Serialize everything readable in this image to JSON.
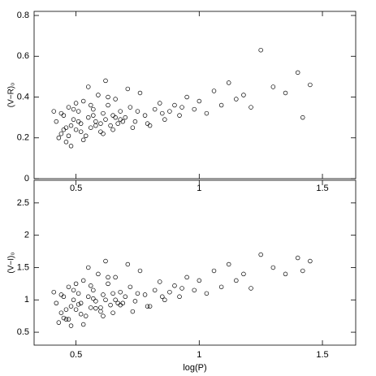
{
  "chart_data": [
    {
      "type": "scatter",
      "ylabel": "(V−R)₀",
      "color": "#000000",
      "xlim": [
        0.33,
        1.635
      ],
      "xticks": [
        0.5,
        1,
        1.5
      ],
      "ylim": [
        0,
        0.82
      ],
      "yticks": [
        0,
        0.2,
        0.4,
        0.6,
        0.8
      ],
      "x": [
        0.42,
        0.44,
        0.45,
        0.46,
        0.47,
        0.48,
        0.49,
        0.5,
        0.51,
        0.52,
        0.53,
        0.54,
        0.55,
        0.56,
        0.57,
        0.58,
        0.59,
        0.6,
        0.61,
        0.62,
        0.63,
        0.64,
        0.65,
        0.66,
        0.67,
        0.68,
        0.7,
        0.72,
        0.74,
        0.76,
        0.78,
        0.8,
        0.82,
        0.84,
        0.86,
        0.88,
        0.9,
        0.92,
        0.95,
        0.98,
        1.0,
        1.03,
        1.06,
        1.09,
        1.12,
        1.15,
        1.18,
        1.21,
        1.25,
        1.3,
        1.35,
        1.4,
        1.42,
        1.45,
        0.43,
        0.46,
        0.48,
        0.5,
        0.52,
        0.55,
        0.57,
        0.6,
        0.62,
        0.65,
        0.68,
        0.71,
        0.75,
        0.79,
        0.85,
        0.93,
        0.41,
        0.45,
        0.49,
        0.53,
        0.58,
        0.63,
        0.69,
        0.44,
        0.47,
        0.51,
        0.56,
        0.61,
        0.66,
        0.73
      ],
      "values": [
        0.28,
        0.22,
        0.31,
        0.18,
        0.35,
        0.26,
        0.29,
        0.24,
        0.33,
        0.27,
        0.38,
        0.21,
        0.3,
        0.25,
        0.34,
        0.28,
        0.41,
        0.23,
        0.32,
        0.29,
        0.36,
        0.26,
        0.31,
        0.39,
        0.27,
        0.33,
        0.3,
        0.35,
        0.28,
        0.42,
        0.31,
        0.26,
        0.34,
        0.37,
        0.29,
        0.33,
        0.36,
        0.31,
        0.4,
        0.34,
        0.38,
        0.32,
        0.43,
        0.36,
        0.47,
        0.39,
        0.41,
        0.35,
        0.63,
        0.45,
        0.42,
        0.52,
        0.3,
        0.46,
        0.2,
        0.25,
        0.16,
        0.37,
        0.23,
        0.45,
        0.31,
        0.27,
        0.48,
        0.24,
        0.29,
        0.44,
        0.33,
        0.27,
        0.32,
        0.35,
        0.33,
        0.24,
        0.34,
        0.19,
        0.26,
        0.4,
        0.28,
        0.32,
        0.21,
        0.28,
        0.36,
        0.22,
        0.3,
        0.25
      ]
    },
    {
      "type": "scatter",
      "ylabel": "(V−I)₀",
      "xlabel": "log(P)",
      "color": "#000000",
      "xlim": [
        0.33,
        1.635
      ],
      "xticks": [
        0.5,
        1,
        1.5
      ],
      "ylim": [
        0.3,
        2.85
      ],
      "yticks": [
        0.5,
        1,
        1.5,
        2,
        2.5
      ],
      "x": [
        0.42,
        0.44,
        0.45,
        0.46,
        0.47,
        0.48,
        0.49,
        0.5,
        0.51,
        0.52,
        0.53,
        0.54,
        0.55,
        0.56,
        0.57,
        0.58,
        0.59,
        0.6,
        0.61,
        0.62,
        0.63,
        0.64,
        0.65,
        0.66,
        0.67,
        0.68,
        0.7,
        0.72,
        0.74,
        0.76,
        0.78,
        0.8,
        0.82,
        0.84,
        0.86,
        0.88,
        0.9,
        0.92,
        0.95,
        0.98,
        1.0,
        1.03,
        1.06,
        1.09,
        1.12,
        1.15,
        1.18,
        1.21,
        1.25,
        1.3,
        1.35,
        1.4,
        1.42,
        1.45,
        0.43,
        0.46,
        0.48,
        0.5,
        0.52,
        0.55,
        0.57,
        0.6,
        0.62,
        0.65,
        0.68,
        0.71,
        0.75,
        0.79,
        0.85,
        0.93,
        0.41,
        0.45,
        0.49,
        0.53,
        0.58,
        0.63,
        0.69,
        0.44,
        0.47,
        0.51,
        0.56,
        0.61,
        0.66,
        0.73
      ],
      "values": [
        0.95,
        0.8,
        1.05,
        0.7,
        1.2,
        0.9,
        1.0,
        0.85,
        1.1,
        0.95,
        1.3,
        0.75,
        1.05,
        0.88,
        1.15,
        0.98,
        1.4,
        0.82,
        1.08,
        1.0,
        1.25,
        0.92,
        1.1,
        1.35,
        0.95,
        1.12,
        1.05,
        1.2,
        0.98,
        1.45,
        1.08,
        0.9,
        1.15,
        1.28,
        1.0,
        1.12,
        1.22,
        1.05,
        1.35,
        1.15,
        1.3,
        1.1,
        1.45,
        1.2,
        1.55,
        1.3,
        1.4,
        1.18,
        1.7,
        1.5,
        1.4,
        1.65,
        1.45,
        1.6,
        0.65,
        0.85,
        0.6,
        1.25,
        0.78,
        1.5,
        1.02,
        0.88,
        1.6,
        0.8,
        0.92,
        1.55,
        1.1,
        0.9,
        1.05,
        1.18,
        1.12,
        0.72,
        1.15,
        0.62,
        0.87,
        1.35,
        0.95,
        1.08,
        0.7,
        0.93,
        1.22,
        0.75,
        1.0,
        0.82
      ]
    }
  ]
}
